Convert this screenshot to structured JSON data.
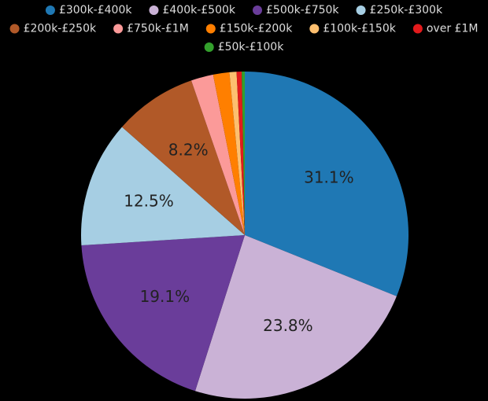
{
  "chart_data": {
    "type": "pie",
    "categories": [
      "£300k-£400k",
      "£400k-£500k",
      "£500k-£750k",
      "£250k-£300k",
      "£200k-£250k",
      "£750k-£1M",
      "£150k-£200k",
      "£100k-£150k",
      "over £1M",
      "£50k-£100k"
    ],
    "values": [
      31.1,
      23.8,
      19.1,
      12.5,
      8.2,
      2.2,
      1.6,
      0.7,
      0.5,
      0.3
    ],
    "value_labels": [
      "31.1%",
      "23.8%",
      "19.1%",
      "12.5%",
      "8.2%",
      null,
      null,
      null,
      null,
      null
    ],
    "colors": [
      "#1f78b4",
      "#cab2d6",
      "#6a3d9a",
      "#a6cee3",
      "#b15928",
      "#fb9a99",
      "#ff7f00",
      "#fdbf6f",
      "#e31a1c",
      "#33a02c"
    ],
    "legend": "top"
  }
}
